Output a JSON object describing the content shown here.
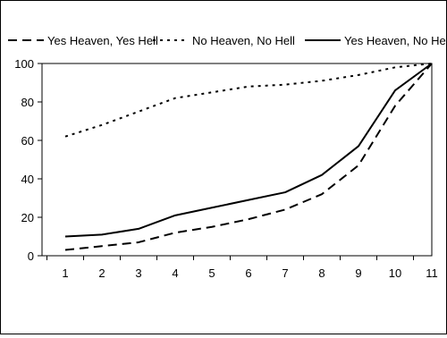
{
  "chart_data": {
    "type": "line",
    "title": "",
    "xlabel": "",
    "ylabel": "",
    "x": [
      1,
      2,
      3,
      4,
      5,
      6,
      7,
      8,
      9,
      10,
      11
    ],
    "ylim": [
      0,
      100
    ],
    "yticks": [
      0,
      20,
      40,
      60,
      80,
      100
    ],
    "grid": false,
    "legend_position": "top",
    "series": [
      {
        "name": "Yes Heaven, Yes Hell",
        "style": "dashed",
        "color": "#000000",
        "values": [
          3,
          5,
          7,
          12,
          15,
          19,
          24,
          32,
          47,
          78,
          100
        ]
      },
      {
        "name": "No Heaven, No Hell",
        "style": "dotted",
        "color": "#000000",
        "values": [
          62,
          68,
          75,
          82,
          85,
          88,
          89,
          91,
          94,
          98,
          100
        ]
      },
      {
        "name": "Yes Heaven, No Hell",
        "style": "solid",
        "color": "#000000",
        "values": [
          10,
          11,
          14,
          21,
          25,
          29,
          33,
          42,
          57,
          86,
          100
        ]
      }
    ]
  }
}
